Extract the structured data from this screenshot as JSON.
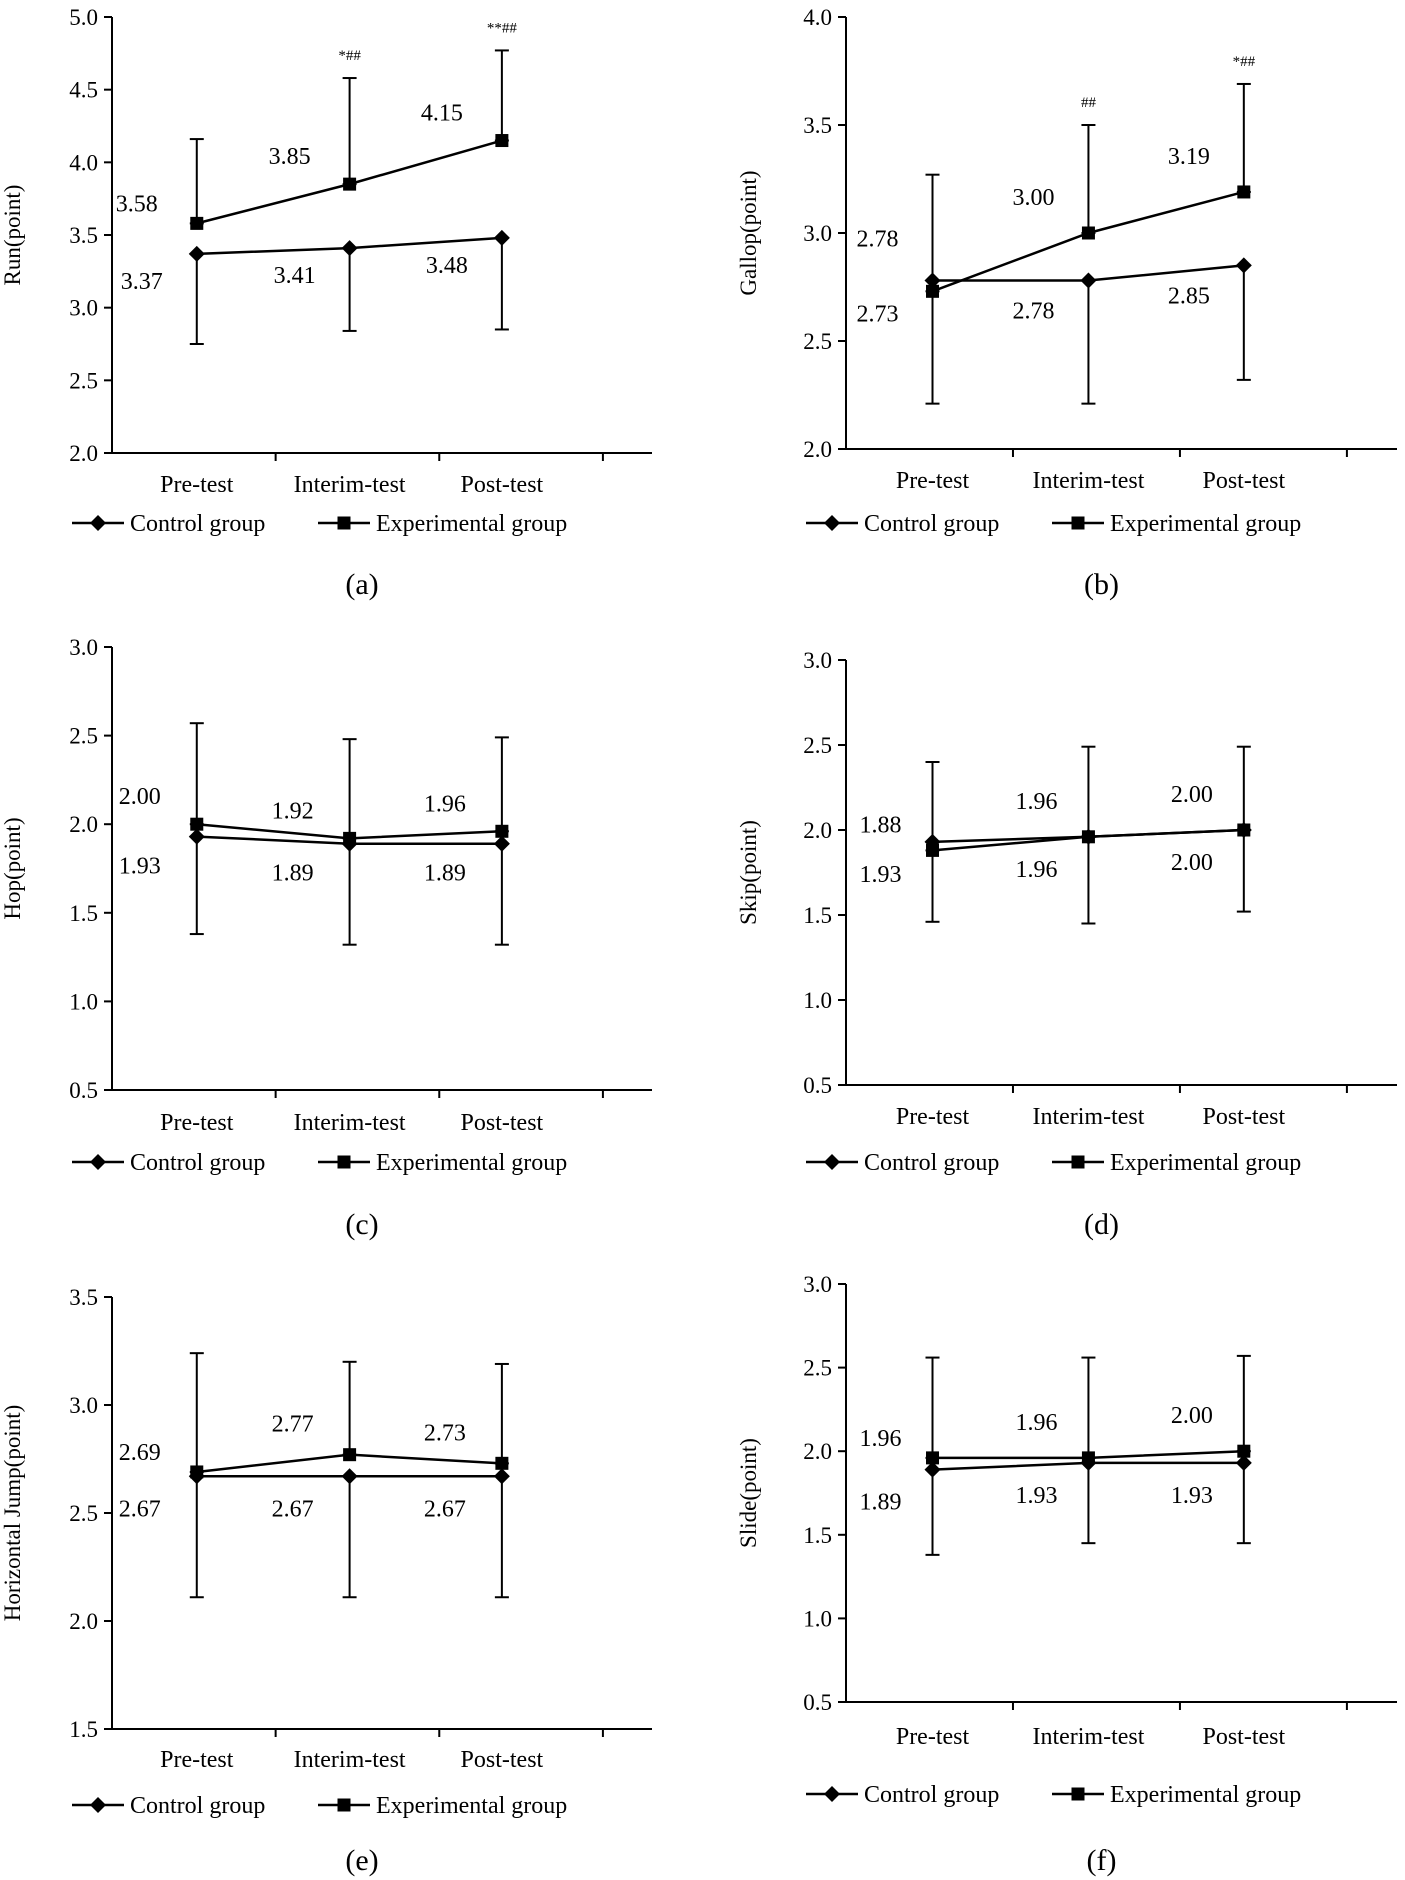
{
  "chart_data": [
    {
      "type": "line",
      "panel_label": "(a)",
      "ylabel": "Run(point)",
      "xlabel": "",
      "categories": [
        "Pre-test",
        "Interim-test",
        "Post-test"
      ],
      "ylim": [
        2.0,
        5.0
      ],
      "yticks": [
        2.0,
        2.5,
        3.0,
        3.5,
        4.0,
        4.5,
        5.0
      ],
      "series": [
        {
          "name": "Control group",
          "marker": "diamond",
          "values": [
            3.37,
            3.41,
            3.48
          ],
          "labels": [
            "3.37",
            "3.41",
            "3.48"
          ],
          "err_low": [
            2.75,
            2.84,
            2.85
          ],
          "err_high": [
            3.37,
            3.41,
            3.48
          ]
        },
        {
          "name": "Experimental group",
          "marker": "square",
          "values": [
            3.58,
            3.85,
            4.15
          ],
          "labels": [
            "3.58",
            "3.85",
            "4.15"
          ],
          "err_low": [
            3.58,
            3.85,
            4.15
          ],
          "err_high": [
            4.16,
            4.58,
            4.77
          ]
        }
      ],
      "significance": [
        "",
        "*##",
        "**##"
      ],
      "legend": "bottom"
    },
    {
      "type": "line",
      "panel_label": "(b)",
      "ylabel": "Gallop(point)",
      "xlabel": "",
      "categories": [
        "Pre-test",
        "Interim-test",
        "Post-test"
      ],
      "ylim": [
        2.0,
        4.0
      ],
      "yticks": [
        2.0,
        2.5,
        3.0,
        3.5,
        4.0
      ],
      "series": [
        {
          "name": "Control group",
          "marker": "diamond",
          "values": [
            2.78,
            2.78,
            2.85
          ],
          "labels": [
            "2.78",
            "2.78",
            "2.85"
          ],
          "err_low": [
            2.21,
            2.21,
            2.32
          ],
          "err_high": [
            2.78,
            2.78,
            2.85
          ]
        },
        {
          "name": "Experimental group",
          "marker": "square",
          "values": [
            2.73,
            3.0,
            3.19
          ],
          "labels": [
            "2.73",
            "3.00",
            "3.19"
          ],
          "err_low": [
            2.73,
            3.0,
            3.19
          ],
          "err_high": [
            3.27,
            3.5,
            3.69
          ]
        }
      ],
      "significance": [
        "",
        "##",
        "*##"
      ],
      "legend": "bottom"
    },
    {
      "type": "line",
      "panel_label": "(c)",
      "ylabel": "Hop(point)",
      "xlabel": "",
      "categories": [
        "Pre-test",
        "Interim-test",
        "Post-test"
      ],
      "ylim": [
        0.5,
        3.0
      ],
      "yticks": [
        0.5,
        1.0,
        1.5,
        2.0,
        2.5,
        3.0
      ],
      "series": [
        {
          "name": "Control group",
          "marker": "diamond",
          "values": [
            1.93,
            1.89,
            1.89
          ],
          "labels": [
            "1.93",
            "1.89",
            "1.89"
          ],
          "err_low": [
            1.38,
            1.32,
            1.32
          ],
          "err_high": [
            1.93,
            1.89,
            1.89
          ]
        },
        {
          "name": "Experimental group",
          "marker": "square",
          "values": [
            2.0,
            1.92,
            1.96
          ],
          "labels": [
            "2.00",
            "1.92",
            "1.96"
          ],
          "err_low": [
            2.0,
            1.92,
            1.96
          ],
          "err_high": [
            2.57,
            2.48,
            2.49
          ]
        }
      ],
      "significance": [
        "",
        "",
        ""
      ],
      "legend": "bottom"
    },
    {
      "type": "line",
      "panel_label": "(d)",
      "ylabel": "Skip(point)",
      "xlabel": "",
      "categories": [
        "Pre-test",
        "Interim-test",
        "Post-test"
      ],
      "ylim": [
        0.5,
        3.0
      ],
      "yticks": [
        0.5,
        1.0,
        1.5,
        2.0,
        2.5,
        3.0
      ],
      "series": [
        {
          "name": "Control group",
          "marker": "diamond",
          "values": [
            1.93,
            1.96,
            2.0
          ],
          "labels": [
            "1.93",
            "1.96",
            "2.00"
          ],
          "err_low": [
            1.46,
            1.45,
            1.52
          ],
          "err_high": [
            1.93,
            1.96,
            2.0
          ]
        },
        {
          "name": "Experimental group",
          "marker": "square",
          "values": [
            1.88,
            1.96,
            2.0
          ],
          "labels": [
            "1.88",
            "1.96",
            "2.00"
          ],
          "err_low": [
            1.88,
            1.96,
            2.0
          ],
          "err_high": [
            2.4,
            2.49,
            2.49
          ]
        }
      ],
      "significance": [
        "",
        "",
        ""
      ],
      "legend": "bottom"
    },
    {
      "type": "line",
      "panel_label": "(e)",
      "ylabel": "Horizontal Jump(point)",
      "xlabel": "",
      "categories": [
        "Pre-test",
        "Interim-test",
        "Post-test"
      ],
      "ylim": [
        1.5,
        3.5
      ],
      "yticks": [
        1.5,
        2.0,
        2.5,
        3.0,
        3.5
      ],
      "series": [
        {
          "name": "Control group",
          "marker": "diamond",
          "values": [
            2.67,
            2.67,
            2.67
          ],
          "labels": [
            "2.67",
            "2.67",
            "2.67"
          ],
          "err_low": [
            2.11,
            2.11,
            2.11
          ],
          "err_high": [
            2.67,
            2.67,
            2.67
          ]
        },
        {
          "name": "Experimental group",
          "marker": "square",
          "values": [
            2.69,
            2.77,
            2.73
          ],
          "labels": [
            "2.69",
            "2.77",
            "2.73"
          ],
          "err_low": [
            2.69,
            2.77,
            2.73
          ],
          "err_high": [
            3.24,
            3.2,
            3.19
          ]
        }
      ],
      "significance": [
        "",
        "",
        ""
      ],
      "legend": "bottom"
    },
    {
      "type": "line",
      "panel_label": "(f)",
      "ylabel": "Slide(point)",
      "xlabel": "",
      "categories": [
        "Pre-test",
        "Interim-test",
        "Post-test"
      ],
      "ylim": [
        0.5,
        3.0
      ],
      "yticks": [
        0.5,
        1.0,
        1.5,
        2.0,
        2.5,
        3.0
      ],
      "series": [
        {
          "name": "Control group",
          "marker": "diamond",
          "values": [
            1.89,
            1.93,
            1.93
          ],
          "labels": [
            "1.89",
            "1.93",
            "1.93"
          ],
          "err_low": [
            1.38,
            1.45,
            1.45
          ],
          "err_high": [
            1.89,
            1.93,
            1.93
          ]
        },
        {
          "name": "Experimental group",
          "marker": "square",
          "values": [
            1.96,
            1.96,
            2.0
          ],
          "labels": [
            "1.96",
            "1.96",
            "2.00"
          ],
          "err_low": [
            1.96,
            1.96,
            2.0
          ],
          "err_high": [
            2.56,
            2.56,
            2.57
          ]
        }
      ],
      "significance": [
        "",
        "",
        ""
      ],
      "legend": "bottom"
    }
  ]
}
